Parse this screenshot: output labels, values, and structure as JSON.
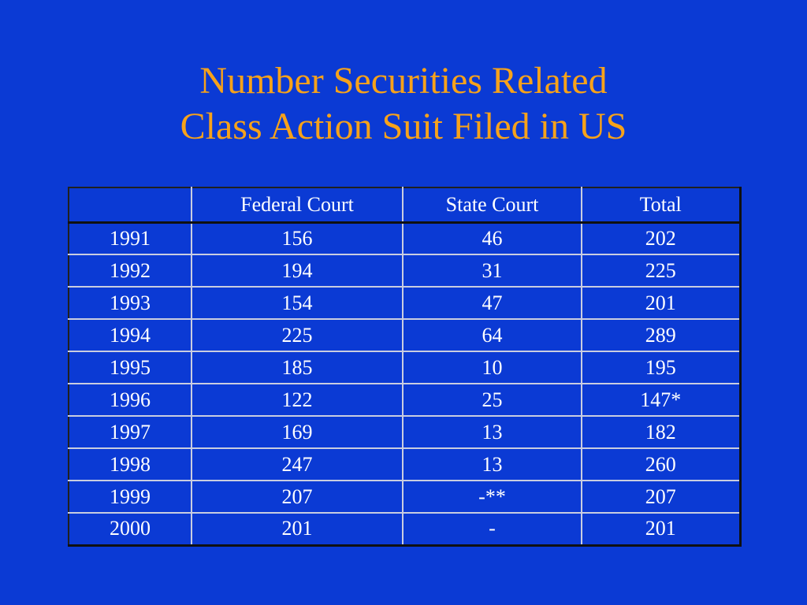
{
  "title": {
    "line1": "Number Securities Related",
    "line2": "Class Action Suit Filed in US"
  },
  "table": {
    "headers": [
      "",
      "Federal Court",
      "State Court",
      "Total"
    ],
    "rows": [
      [
        "1991",
        "156",
        "46",
        "202"
      ],
      [
        "1992",
        "194",
        "31",
        "225"
      ],
      [
        "1993",
        "154",
        "47",
        "201"
      ],
      [
        "1994",
        "225",
        "64",
        "289"
      ],
      [
        "1995",
        "185",
        "10",
        "195"
      ],
      [
        "1996",
        "122",
        "25",
        "147*"
      ],
      [
        "1997",
        "169",
        "13",
        "182"
      ],
      [
        "1998",
        "247",
        "13",
        "260"
      ],
      [
        "1999",
        "207",
        "-**",
        "207"
      ],
      [
        "2000",
        "201",
        "-",
        "201"
      ]
    ]
  },
  "colors": {
    "background": "#0b3ad4",
    "title": "#f7a21a",
    "text": "#ffffff"
  }
}
